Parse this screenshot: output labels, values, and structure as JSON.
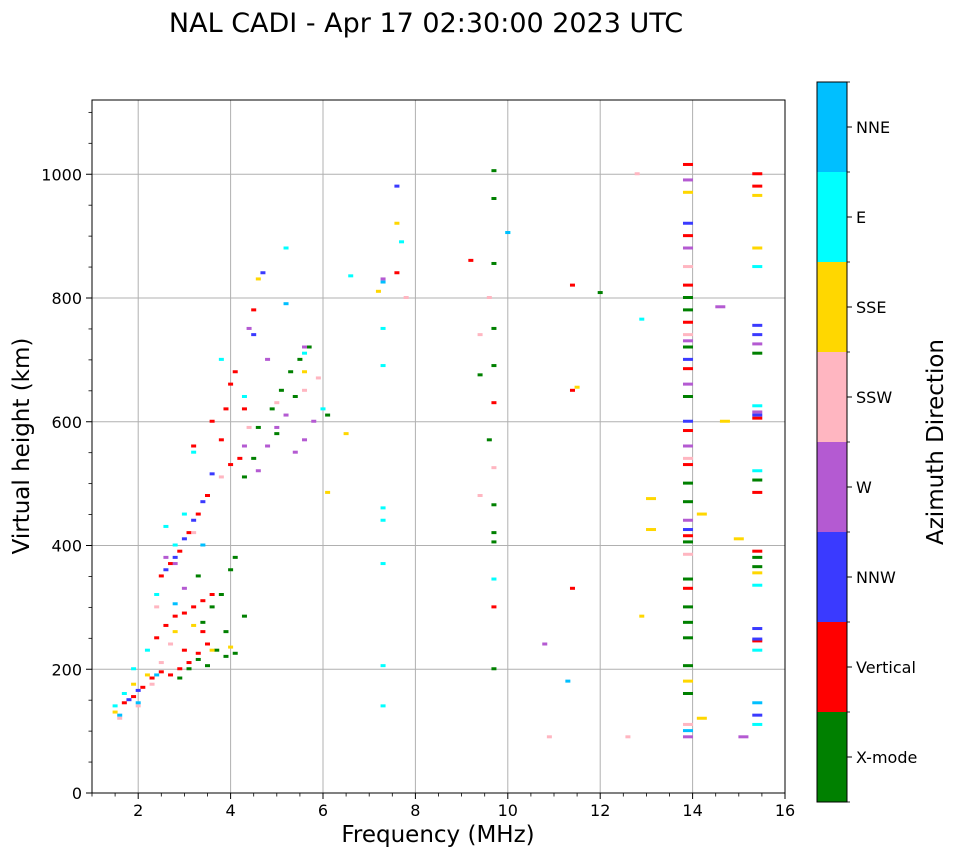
{
  "chart_data": {
    "type": "scatter",
    "title": "NAL CADI - Apr 17 02:30:00 2023 UTC",
    "xlabel": "Frequency (MHz)",
    "ylabel": "Virtual height (km)",
    "xlim": [
      1,
      16
    ],
    "ylim": [
      0,
      1120
    ],
    "xticks": [
      2,
      4,
      6,
      8,
      10,
      12,
      14,
      16
    ],
    "yticks": [
      0,
      200,
      400,
      600,
      800,
      1000
    ],
    "grid": true,
    "colorbar": {
      "label": "Azimuth Direction",
      "categories": [
        {
          "name": "X-mode",
          "color": "#008000"
        },
        {
          "name": "Vertical",
          "color": "#ff0000"
        },
        {
          "name": "NNW",
          "color": "#3a3aff"
        },
        {
          "name": "W",
          "color": "#b45ad2"
        },
        {
          "name": "SSW",
          "color": "#ffb6c1"
        },
        {
          "name": "SSE",
          "color": "#ffd700"
        },
        {
          "name": "E",
          "color": "#00ffff"
        },
        {
          "name": "NNE",
          "color": "#00bfff"
        }
      ]
    },
    "series": [
      {
        "name": "X-mode",
        "points": [
          [
            2.9,
            185
          ],
          [
            3.1,
            200
          ],
          [
            3.3,
            215
          ],
          [
            3.5,
            205
          ],
          [
            3.7,
            230
          ],
          [
            3.9,
            220
          ],
          [
            4.1,
            225
          ],
          [
            3.4,
            275
          ],
          [
            3.6,
            300
          ],
          [
            3.8,
            320
          ],
          [
            4.0,
            360
          ],
          [
            4.1,
            380
          ],
          [
            3.3,
            350
          ],
          [
            3.9,
            260
          ],
          [
            4.3,
            285
          ],
          [
            4.6,
            590
          ],
          [
            4.9,
            620
          ],
          [
            5.1,
            650
          ],
          [
            5.3,
            680
          ],
          [
            5.5,
            700
          ],
          [
            5.7,
            720
          ],
          [
            4.3,
            510
          ],
          [
            4.5,
            540
          ],
          [
            5.0,
            580
          ],
          [
            5.4,
            640
          ],
          [
            6.1,
            610
          ],
          [
            9.7,
            1005
          ],
          [
            9.7,
            960
          ],
          [
            9.7,
            855
          ],
          [
            9.7,
            750
          ],
          [
            9.4,
            675
          ],
          [
            9.7,
            690
          ],
          [
            9.7,
            465
          ],
          [
            9.7,
            420
          ],
          [
            9.7,
            405
          ],
          [
            9.7,
            200
          ],
          [
            9.6,
            570
          ],
          [
            12.0,
            808
          ],
          [
            13.9,
            800
          ],
          [
            13.9,
            780
          ],
          [
            13.9,
            720
          ],
          [
            13.9,
            640
          ],
          [
            13.9,
            500
          ],
          [
            13.9,
            470
          ],
          [
            13.9,
            405
          ],
          [
            13.9,
            345
          ],
          [
            13.9,
            300
          ],
          [
            13.9,
            250
          ],
          [
            13.9,
            205
          ],
          [
            13.9,
            160
          ],
          [
            13.9,
            275
          ],
          [
            15.4,
            505
          ],
          [
            15.4,
            710
          ],
          [
            15.4,
            380
          ],
          [
            15.4,
            365
          ]
        ]
      },
      {
        "name": "Vertical",
        "points": [
          [
            1.7,
            145
          ],
          [
            1.9,
            155
          ],
          [
            2.1,
            170
          ],
          [
            2.3,
            185
          ],
          [
            2.5,
            195
          ],
          [
            2.7,
            190
          ],
          [
            2.9,
            200
          ],
          [
            3.1,
            210
          ],
          [
            3.3,
            225
          ],
          [
            3.5,
            240
          ],
          [
            2.4,
            250
          ],
          [
            2.6,
            270
          ],
          [
            2.8,
            285
          ],
          [
            3.0,
            290
          ],
          [
            3.2,
            300
          ],
          [
            3.4,
            310
          ],
          [
            3.6,
            320
          ],
          [
            2.5,
            350
          ],
          [
            2.7,
            370
          ],
          [
            2.9,
            390
          ],
          [
            3.1,
            420
          ],
          [
            3.3,
            450
          ],
          [
            3.5,
            480
          ],
          [
            3.2,
            560
          ],
          [
            3.6,
            600
          ],
          [
            3.9,
            620
          ],
          [
            4.0,
            660
          ],
          [
            4.1,
            680
          ],
          [
            3.8,
            570
          ],
          [
            4.2,
            540
          ],
          [
            4.0,
            530
          ],
          [
            3.0,
            230
          ],
          [
            3.4,
            260
          ],
          [
            4.5,
            780
          ],
          [
            4.3,
            620
          ],
          [
            7.6,
            840
          ],
          [
            9.2,
            860
          ],
          [
            9.7,
            630
          ],
          [
            9.7,
            300
          ],
          [
            11.4,
            820
          ],
          [
            11.4,
            650
          ],
          [
            11.4,
            330
          ],
          [
            13.9,
            1015
          ],
          [
            13.9,
            900
          ],
          [
            13.9,
            820
          ],
          [
            13.9,
            760
          ],
          [
            13.9,
            685
          ],
          [
            13.9,
            585
          ],
          [
            13.9,
            530
          ],
          [
            13.9,
            415
          ],
          [
            13.9,
            330
          ],
          [
            15.4,
            1000
          ],
          [
            15.4,
            980
          ],
          [
            15.4,
            605
          ],
          [
            15.4,
            485
          ],
          [
            15.4,
            390
          ],
          [
            15.4,
            245
          ]
        ]
      },
      {
        "name": "NNW",
        "points": [
          [
            1.8,
            150
          ],
          [
            2.0,
            165
          ],
          [
            2.6,
            360
          ],
          [
            2.8,
            380
          ],
          [
            3.0,
            410
          ],
          [
            3.2,
            440
          ],
          [
            3.4,
            470
          ],
          [
            3.6,
            515
          ],
          [
            4.7,
            840
          ],
          [
            4.5,
            740
          ],
          [
            7.6,
            980
          ],
          [
            13.9,
            920
          ],
          [
            13.9,
            700
          ],
          [
            13.9,
            600
          ],
          [
            13.9,
            425
          ],
          [
            15.4,
            755
          ],
          [
            15.4,
            740
          ],
          [
            15.4,
            610
          ],
          [
            15.4,
            265
          ],
          [
            15.4,
            248
          ],
          [
            15.4,
            125
          ]
        ]
      },
      {
        "name": "W",
        "points": [
          [
            2.6,
            380
          ],
          [
            2.8,
            370
          ],
          [
            3.0,
            330
          ],
          [
            4.3,
            560
          ],
          [
            4.6,
            520
          ],
          [
            4.8,
            560
          ],
          [
            5.0,
            590
          ],
          [
            5.2,
            610
          ],
          [
            5.4,
            550
          ],
          [
            5.6,
            570
          ],
          [
            5.8,
            600
          ],
          [
            4.4,
            750
          ],
          [
            4.8,
            700
          ],
          [
            5.6,
            720
          ],
          [
            7.3,
            830
          ],
          [
            10.8,
            240
          ],
          [
            13.9,
            990
          ],
          [
            13.9,
            880
          ],
          [
            13.9,
            730
          ],
          [
            13.9,
            660
          ],
          [
            13.9,
            560
          ],
          [
            13.9,
            440
          ],
          [
            13.9,
            90
          ],
          [
            14.6,
            785
          ],
          [
            15.4,
            725
          ],
          [
            15.4,
            615
          ],
          [
            15.1,
            90
          ]
        ]
      },
      {
        "name": "SSW",
        "points": [
          [
            1.6,
            120
          ],
          [
            2.0,
            140
          ],
          [
            2.3,
            175
          ],
          [
            2.5,
            210
          ],
          [
            2.7,
            240
          ],
          [
            3.2,
            420
          ],
          [
            3.8,
            510
          ],
          [
            4.4,
            590
          ],
          [
            5.0,
            630
          ],
          [
            5.6,
            650
          ],
          [
            5.9,
            670
          ],
          [
            2.4,
            300
          ],
          [
            7.8,
            800
          ],
          [
            9.4,
            740
          ],
          [
            9.6,
            800
          ],
          [
            9.7,
            525
          ],
          [
            9.4,
            480
          ],
          [
            10.9,
            90
          ],
          [
            12.6,
            90
          ],
          [
            12.8,
            1000
          ],
          [
            13.9,
            850
          ],
          [
            13.9,
            740
          ],
          [
            13.9,
            540
          ],
          [
            13.9,
            385
          ],
          [
            13.9,
            110
          ]
        ]
      },
      {
        "name": "SSE",
        "points": [
          [
            1.5,
            130
          ],
          [
            1.9,
            175
          ],
          [
            2.2,
            190
          ],
          [
            2.8,
            260
          ],
          [
            3.2,
            270
          ],
          [
            3.6,
            230
          ],
          [
            4.0,
            235
          ],
          [
            4.6,
            830
          ],
          [
            5.6,
            680
          ],
          [
            6.1,
            485
          ],
          [
            6.5,
            580
          ],
          [
            7.6,
            920
          ],
          [
            7.2,
            810
          ],
          [
            11.5,
            655
          ],
          [
            12.9,
            285
          ],
          [
            13.1,
            475
          ],
          [
            13.1,
            425
          ],
          [
            13.9,
            970
          ],
          [
            13.9,
            180
          ],
          [
            14.2,
            450
          ],
          [
            14.2,
            120
          ],
          [
            14.7,
            600
          ],
          [
            15.0,
            410
          ],
          [
            15.4,
            965
          ],
          [
            15.4,
            880
          ],
          [
            15.4,
            355
          ]
        ]
      },
      {
        "name": "E",
        "points": [
          [
            1.5,
            140
          ],
          [
            1.7,
            160
          ],
          [
            1.9,
            200
          ],
          [
            2.2,
            230
          ],
          [
            2.4,
            320
          ],
          [
            2.6,
            430
          ],
          [
            2.8,
            400
          ],
          [
            3.0,
            450
          ],
          [
            3.2,
            550
          ],
          [
            3.8,
            700
          ],
          [
            4.3,
            640
          ],
          [
            5.2,
            880
          ],
          [
            5.6,
            710
          ],
          [
            6.0,
            620
          ],
          [
            6.6,
            835
          ],
          [
            7.3,
            750
          ],
          [
            7.3,
            690
          ],
          [
            7.3,
            460
          ],
          [
            7.3,
            440
          ],
          [
            7.3,
            370
          ],
          [
            7.3,
            205
          ],
          [
            7.3,
            140
          ],
          [
            7.7,
            890
          ],
          [
            9.7,
            345
          ],
          [
            10.0,
            905
          ],
          [
            12.9,
            765
          ],
          [
            15.4,
            850
          ],
          [
            15.4,
            625
          ],
          [
            15.4,
            520
          ],
          [
            15.4,
            335
          ],
          [
            15.4,
            230
          ],
          [
            15.4,
            110
          ]
        ]
      },
      {
        "name": "NNE",
        "points": [
          [
            1.6,
            125
          ],
          [
            2.0,
            145
          ],
          [
            2.4,
            190
          ],
          [
            2.8,
            305
          ],
          [
            3.4,
            400
          ],
          [
            5.2,
            790
          ],
          [
            7.3,
            825
          ],
          [
            10.0,
            905
          ],
          [
            11.3,
            180
          ],
          [
            13.9,
            100
          ],
          [
            15.4,
            145
          ]
        ]
      }
    ]
  }
}
